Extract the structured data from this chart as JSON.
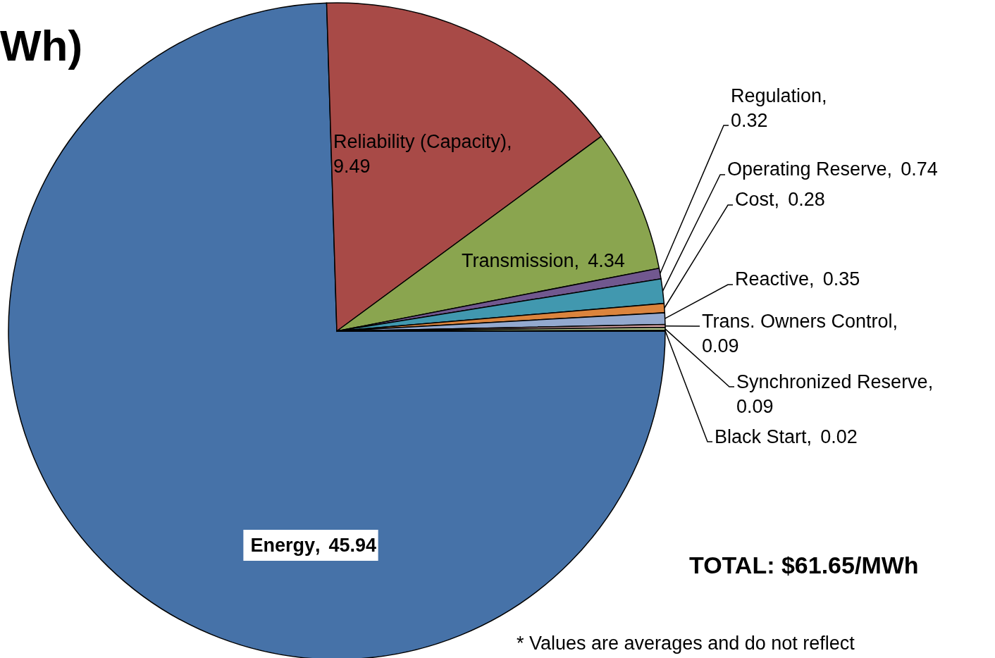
{
  "chart_data": {
    "type": "pie",
    "title": "Wh)",
    "categories": [
      "Energy",
      "Reliability (Capacity)",
      "Transmission",
      "Regulation",
      "Operating Reserve",
      "Cost",
      "Reactive",
      "Trans. Owners Control",
      "Synchronized Reserve",
      "Black Start"
    ],
    "values": [
      45.94,
      9.49,
      4.34,
      0.32,
      0.74,
      0.28,
      0.35,
      0.09,
      0.09,
      0.02
    ],
    "colors": [
      "#4672a8",
      "#a84a47",
      "#8aa54f",
      "#71588f",
      "#4198af",
      "#db843d",
      "#93a9cf",
      "#d4a0a0",
      "#b5c98e",
      "#5a4a3a"
    ],
    "data_labels": true,
    "annotations": [
      "TOTAL: $61.65/MWh",
      "* Values are averages and do not reflect",
      ","
    ]
  }
}
